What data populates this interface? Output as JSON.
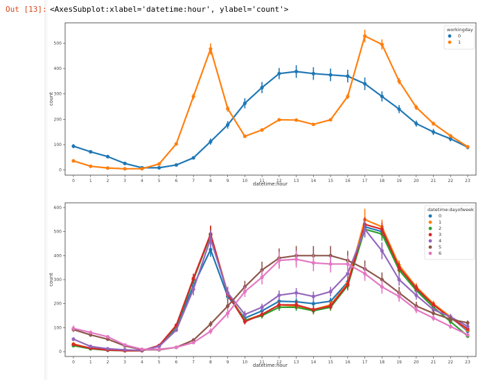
{
  "cell": {
    "prompt": "Out [13]:",
    "repr": "<AxesSubplot:xlabel='datetime:hour', ylabel='count'>"
  },
  "chart_data": [
    {
      "type": "line",
      "xlabel": "datetime:hour",
      "ylabel": "count",
      "ylim": [
        -20,
        580
      ],
      "yticks": [
        0,
        100,
        200,
        300,
        400,
        500
      ],
      "categories": [
        "0",
        "1",
        "2",
        "3",
        "4",
        "5",
        "6",
        "7",
        "8",
        "9",
        "10",
        "11",
        "12",
        "13",
        "14",
        "15",
        "16",
        "17",
        "18",
        "19",
        "20",
        "21",
        "22",
        "23"
      ],
      "legend": {
        "title": "workingday",
        "position": "top-right"
      },
      "series": [
        {
          "name": "0",
          "color": "#1f77b4",
          "values": [
            94,
            72,
            53,
            26,
            9,
            9,
            20,
            48,
            112,
            178,
            263,
            325,
            380,
            388,
            380,
            375,
            370,
            340,
            290,
            240,
            183,
            150,
            123,
            90
          ],
          "err": [
            8,
            6,
            6,
            4,
            2,
            2,
            4,
            6,
            12,
            15,
            20,
            22,
            22,
            25,
            25,
            25,
            25,
            25,
            20,
            16,
            12,
            12,
            10,
            8
          ]
        },
        {
          "name": "1",
          "color": "#ff7f0e",
          "values": [
            36,
            15,
            8,
            5,
            5,
            24,
            103,
            290,
            477,
            242,
            133,
            158,
            198,
            197,
            180,
            198,
            290,
            528,
            495,
            350,
            247,
            183,
            135,
            92
          ],
          "err": [
            3,
            2,
            2,
            1,
            1,
            2,
            5,
            12,
            22,
            12,
            5,
            5,
            6,
            6,
            6,
            6,
            10,
            25,
            20,
            12,
            10,
            8,
            6,
            4
          ]
        }
      ]
    },
    {
      "type": "line",
      "xlabel": "datetime:hour",
      "ylabel": "count",
      "ylim": [
        -20,
        620
      ],
      "yticks": [
        0,
        100,
        200,
        300,
        400,
        500,
        600
      ],
      "categories": [
        "0",
        "1",
        "2",
        "3",
        "4",
        "5",
        "6",
        "7",
        "8",
        "9",
        "10",
        "11",
        "12",
        "13",
        "14",
        "15",
        "16",
        "17",
        "18",
        "19",
        "20",
        "21",
        "22",
        "23"
      ],
      "legend": {
        "title": "datetime:dayofweek",
        "position": "top-right"
      },
      "series": [
        {
          "name": "0",
          "color": "#1f77b4",
          "values": [
            30,
            15,
            8,
            5,
            5,
            24,
            100,
            275,
            425,
            230,
            140,
            170,
            210,
            208,
            200,
            210,
            290,
            520,
            500,
            355,
            260,
            195,
            145,
            85
          ],
          "err": [
            5,
            3,
            2,
            2,
            2,
            3,
            8,
            20,
            30,
            25,
            12,
            12,
            15,
            15,
            15,
            15,
            20,
            30,
            28,
            20,
            15,
            12,
            10,
            8
          ]
        },
        {
          "name": "1",
          "color": "#ff7f0e",
          "values": [
            32,
            14,
            7,
            4,
            4,
            24,
            105,
            300,
            490,
            245,
            130,
            155,
            195,
            190,
            175,
            195,
            285,
            550,
            520,
            360,
            270,
            200,
            145,
            90
          ],
          "err": [
            5,
            3,
            2,
            2,
            2,
            3,
            8,
            20,
            35,
            25,
            12,
            12,
            15,
            15,
            15,
            15,
            20,
            45,
            30,
            20,
            15,
            12,
            10,
            8
          ]
        },
        {
          "name": "2",
          "color": "#2ca02c",
          "values": [
            25,
            12,
            6,
            4,
            4,
            24,
            105,
            300,
            485,
            240,
            130,
            150,
            185,
            185,
            170,
            185,
            275,
            510,
            490,
            340,
            255,
            185,
            125,
            65
          ],
          "err": [
            5,
            3,
            2,
            2,
            2,
            3,
            8,
            20,
            35,
            25,
            12,
            12,
            15,
            15,
            15,
            15,
            20,
            30,
            28,
            20,
            15,
            12,
            10,
            8
          ]
        },
        {
          "name": "3",
          "color": "#d62728",
          "values": [
            30,
            14,
            7,
            4,
            4,
            26,
            110,
            305,
            490,
            240,
            125,
            155,
            195,
            195,
            175,
            190,
            280,
            530,
            510,
            350,
            265,
            195,
            140,
            95
          ],
          "err": [
            5,
            3,
            2,
            2,
            2,
            3,
            8,
            20,
            35,
            25,
            12,
            12,
            15,
            15,
            15,
            15,
            20,
            30,
            28,
            20,
            15,
            12,
            10,
            8
          ]
        },
        {
          "name": "4",
          "color": "#9467bd",
          "values": [
            52,
            22,
            12,
            8,
            5,
            22,
            90,
            260,
            470,
            245,
            155,
            185,
            235,
            245,
            230,
            250,
            325,
            510,
            420,
            300,
            235,
            175,
            145,
            105
          ],
          "err": [
            8,
            4,
            3,
            2,
            2,
            3,
            8,
            25,
            35,
            25,
            15,
            15,
            20,
            20,
            20,
            20,
            25,
            35,
            35,
            25,
            18,
            15,
            12,
            10
          ]
        },
        {
          "name": "5",
          "color": "#8c564b",
          "values": [
            92,
            70,
            52,
            24,
            8,
            8,
            18,
            48,
            115,
            190,
            270,
            340,
            390,
            400,
            400,
            400,
            380,
            345,
            300,
            245,
            190,
            160,
            135,
            120
          ],
          "err": [
            10,
            8,
            6,
            5,
            2,
            2,
            4,
            8,
            12,
            20,
            25,
            35,
            40,
            40,
            40,
            40,
            40,
            35,
            30,
            25,
            18,
            15,
            12,
            10
          ]
        },
        {
          "name": "6",
          "color": "#e377c2",
          "values": [
            97,
            80,
            62,
            28,
            10,
            10,
            18,
            38,
            85,
            160,
            250,
            310,
            380,
            385,
            370,
            365,
            365,
            325,
            270,
            230,
            175,
            140,
            105,
            70
          ],
          "err": [
            12,
            8,
            6,
            5,
            2,
            2,
            4,
            6,
            12,
            20,
            22,
            30,
            35,
            35,
            35,
            35,
            35,
            30,
            28,
            22,
            15,
            12,
            10,
            8
          ]
        }
      ]
    }
  ]
}
